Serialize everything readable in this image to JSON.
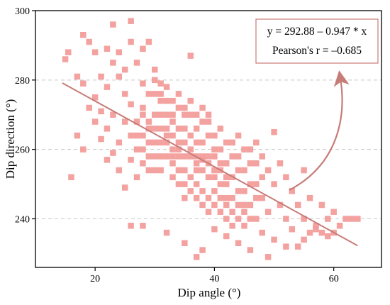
{
  "chart_data": {
    "type": "scatter",
    "xlabel": "Dip angle (°)",
    "ylabel": "Dip direction (°)",
    "xlim": [
      10,
      68
    ],
    "ylim": [
      226,
      300
    ],
    "xticks": [
      20,
      40,
      60
    ],
    "yticks": [
      240,
      260,
      280,
      300
    ],
    "grid": "horizontal dashed",
    "annotation": {
      "equation": "y = 292.88 – 0.947 * x",
      "pearson": "Pearson's r = –0.685"
    },
    "fit": {
      "intercept": 292.88,
      "slope": -0.947,
      "x_range": [
        14.5,
        64
      ]
    },
    "colors": {
      "points": "#f29a98",
      "fit_line": "#c77c78",
      "arrow": "#c77c78",
      "grid": "#c8c8c8",
      "annotation_border": "#c77c78"
    },
    "series": [
      {
        "points": [
          [
            15,
            286
          ],
          [
            15.5,
            288
          ],
          [
            17,
            281
          ],
          [
            18,
            293
          ],
          [
            18,
            279
          ],
          [
            19,
            291
          ],
          [
            20,
            288
          ],
          [
            20,
            275
          ],
          [
            21,
            281
          ],
          [
            21,
            271
          ],
          [
            22,
            289
          ],
          [
            22,
            278
          ],
          [
            23,
            285
          ],
          [
            23,
            296
          ],
          [
            24,
            288
          ],
          [
            24,
            281
          ],
          [
            25,
            283
          ],
          [
            25,
            276
          ],
          [
            26,
            297
          ],
          [
            26,
            291
          ],
          [
            27,
            285
          ],
          [
            28,
            289
          ],
          [
            28,
            279
          ],
          [
            29,
            291
          ],
          [
            30,
            283
          ],
          [
            31,
            279
          ],
          [
            16,
            252
          ],
          [
            17,
            264
          ],
          [
            18,
            260
          ],
          [
            19,
            272
          ],
          [
            20,
            268
          ],
          [
            21,
            263
          ],
          [
            22,
            266
          ],
          [
            22,
            257
          ],
          [
            23,
            259
          ],
          [
            23,
            270
          ],
          [
            24,
            254
          ],
          [
            24,
            262
          ],
          [
            25,
            268
          ],
          [
            25,
            249
          ],
          [
            26,
            273
          ],
          [
            26,
            257
          ],
          [
            27,
            264
          ],
          [
            27,
            252
          ],
          [
            28,
            270
          ],
          [
            28,
            260
          ],
          [
            29,
            266
          ],
          [
            29,
            254
          ],
          [
            30,
            276
          ],
          [
            30,
            262
          ],
          [
            31,
            270
          ],
          [
            31,
            258
          ],
          [
            32,
            274
          ],
          [
            32,
            264
          ],
          [
            33,
            268
          ],
          [
            33,
            256
          ],
          [
            34,
            272
          ],
          [
            34,
            260
          ],
          [
            35,
            266
          ],
          [
            35,
            254
          ],
          [
            36,
            287
          ],
          [
            36,
            270
          ],
          [
            37,
            262
          ],
          [
            37,
            250
          ],
          [
            38,
            268
          ],
          [
            38,
            257
          ],
          [
            39,
            264
          ],
          [
            39,
            252
          ],
          [
            40,
            260
          ],
          [
            40,
            248
          ],
          [
            41,
            266
          ],
          [
            41,
            256
          ],
          [
            42,
            262
          ],
          [
            42,
            250
          ],
          [
            43,
            258
          ],
          [
            43,
            246
          ],
          [
            44,
            264
          ],
          [
            44,
            254
          ],
          [
            45,
            260
          ],
          [
            45,
            248
          ],
          [
            46,
            256
          ],
          [
            46,
            244
          ],
          [
            47,
            262
          ],
          [
            47,
            250
          ],
          [
            48,
            258
          ],
          [
            48,
            246
          ],
          [
            49,
            254
          ],
          [
            49,
            242
          ],
          [
            50,
            265
          ],
          [
            50,
            250
          ],
          [
            51,
            256
          ],
          [
            51,
            244
          ],
          [
            52,
            252
          ],
          [
            52,
            240
          ],
          [
            53,
            248
          ],
          [
            54,
            244
          ],
          [
            55,
            254
          ],
          [
            55,
            240
          ],
          [
            56,
            246
          ],
          [
            57,
            238
          ],
          [
            58,
            244
          ],
          [
            58,
            236
          ],
          [
            59,
            240
          ],
          [
            60,
            242
          ],
          [
            61,
            238
          ],
          [
            62,
            240
          ],
          [
            63,
            240
          ],
          [
            64,
            240
          ],
          [
            60,
            236
          ],
          [
            56,
            236
          ],
          [
            26,
            238
          ],
          [
            28,
            238
          ],
          [
            32,
            236
          ],
          [
            35,
            233
          ],
          [
            37,
            229
          ],
          [
            38,
            231
          ],
          [
            40,
            237
          ],
          [
            42,
            235
          ],
          [
            44,
            233
          ],
          [
            45,
            238
          ],
          [
            46,
            231
          ],
          [
            48,
            236
          ],
          [
            49,
            229
          ],
          [
            50,
            234
          ],
          [
            52,
            232
          ],
          [
            53,
            237
          ],
          [
            54,
            232
          ],
          [
            55,
            234
          ],
          [
            57,
            237
          ],
          [
            59,
            235
          ],
          [
            28,
            272
          ],
          [
            29,
            276
          ],
          [
            30,
            270
          ],
          [
            31,
            266
          ],
          [
            32,
            262
          ],
          [
            33,
            270
          ],
          [
            34,
            266
          ],
          [
            35,
            262
          ],
          [
            36,
            258
          ],
          [
            37,
            266
          ],
          [
            38,
            262
          ],
          [
            39,
            258
          ],
          [
            40,
            254
          ],
          [
            41,
            260
          ],
          [
            42,
            256
          ],
          [
            43,
            252
          ],
          [
            44,
            258
          ],
          [
            45,
            254
          ],
          [
            46,
            250
          ],
          [
            47,
            256
          ],
          [
            29,
            268
          ],
          [
            30,
            266
          ],
          [
            31,
            274
          ],
          [
            32,
            270
          ],
          [
            33,
            264
          ],
          [
            34,
            258
          ],
          [
            35,
            270
          ],
          [
            36,
            264
          ],
          [
            37,
            258
          ],
          [
            38,
            254
          ],
          [
            39,
            268
          ],
          [
            40,
            264
          ],
          [
            41,
            250
          ],
          [
            42,
            246
          ],
          [
            43,
            262
          ],
          [
            44,
            248
          ],
          [
            45,
            244
          ],
          [
            46,
            260
          ],
          [
            47,
            246
          ],
          [
            48,
            252
          ],
          [
            30,
            280
          ],
          [
            31,
            276
          ],
          [
            32,
            278
          ],
          [
            33,
            274
          ],
          [
            34,
            276
          ],
          [
            35,
            272
          ],
          [
            36,
            274
          ],
          [
            37,
            270
          ],
          [
            38,
            272
          ],
          [
            39,
            270
          ],
          [
            27,
            260
          ],
          [
            28,
            256
          ],
          [
            29,
            262
          ],
          [
            30,
            258
          ],
          [
            31,
            254
          ],
          [
            32,
            258
          ],
          [
            33,
            252
          ],
          [
            34,
            254
          ],
          [
            35,
            250
          ],
          [
            36,
            252
          ],
          [
            37,
            254
          ],
          [
            38,
            248
          ],
          [
            39,
            246
          ],
          [
            40,
            252
          ],
          [
            41,
            246
          ],
          [
            42,
            244
          ],
          [
            43,
            242
          ],
          [
            44,
            244
          ],
          [
            45,
            242
          ],
          [
            46,
            240
          ],
          [
            33,
            260
          ],
          [
            34,
            262
          ],
          [
            35,
            258
          ],
          [
            36,
            260
          ],
          [
            37,
            256
          ],
          [
            38,
            258
          ],
          [
            39,
            256
          ],
          [
            40,
            258
          ],
          [
            41,
            254
          ],
          [
            42,
            252
          ],
          [
            26,
            264
          ],
          [
            27,
            268
          ],
          [
            28,
            264
          ],
          [
            29,
            258
          ],
          [
            30,
            254
          ],
          [
            31,
            262
          ],
          [
            32,
            266
          ],
          [
            33,
            258
          ],
          [
            34,
            250
          ],
          [
            35,
            246
          ],
          [
            36,
            248
          ],
          [
            37,
            246
          ],
          [
            38,
            244
          ],
          [
            39,
            242
          ],
          [
            40,
            244
          ],
          [
            41,
            242
          ],
          [
            42,
            240
          ],
          [
            43,
            238
          ],
          [
            44,
            240
          ],
          [
            47,
            240
          ]
        ]
      }
    ]
  }
}
